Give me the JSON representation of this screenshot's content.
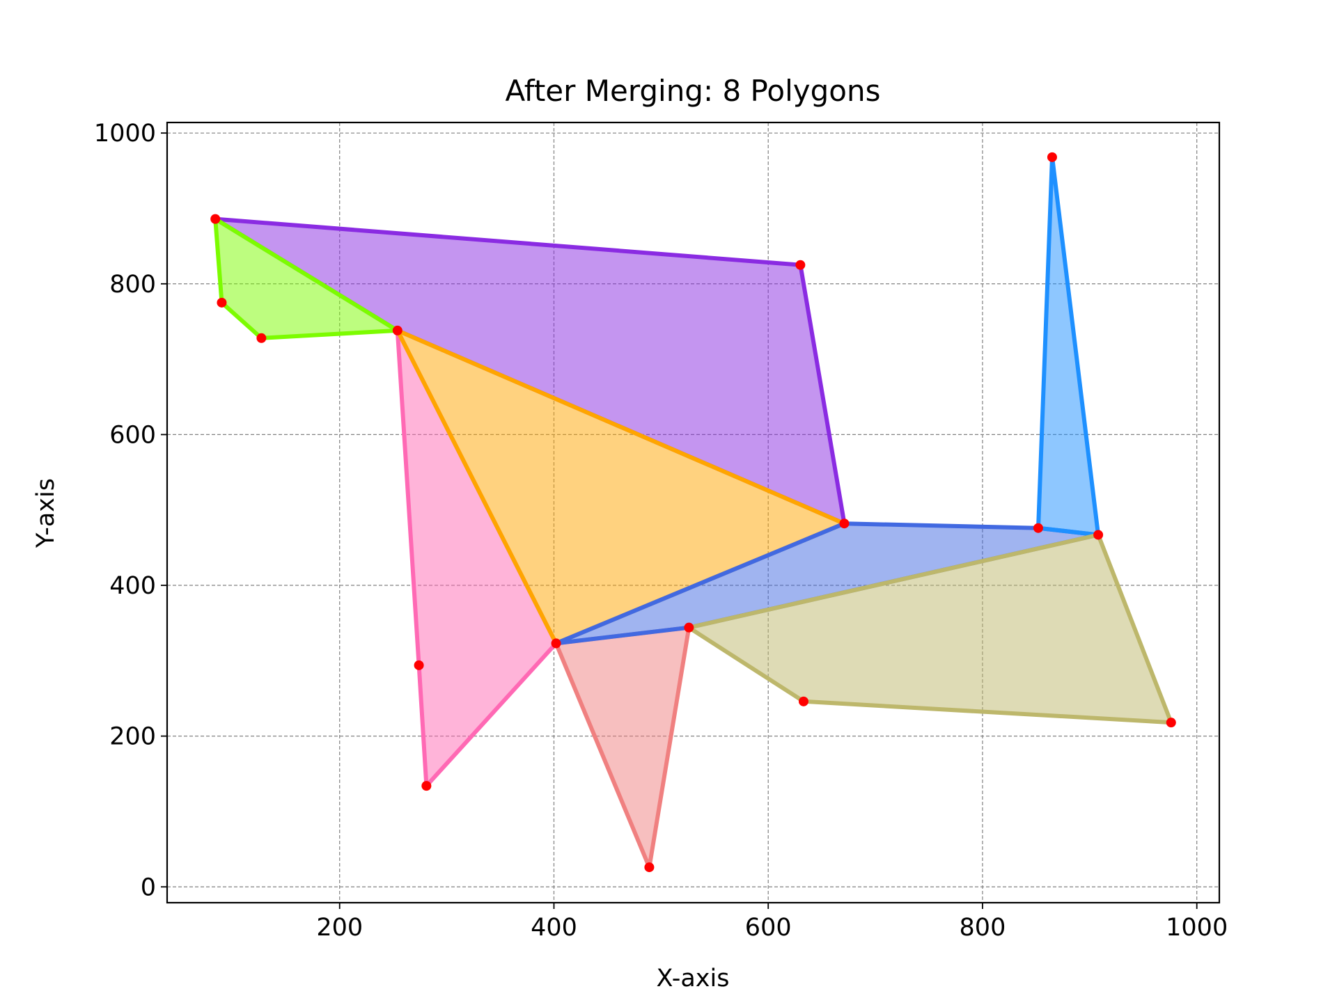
{
  "chart_data": {
    "type": "polygon",
    "title": "After Merging: 8 Polygons",
    "xlabel": "X-axis",
    "ylabel": "Y-axis",
    "xlim": [
      39,
      1021
    ],
    "ylim": [
      -21,
      1014
    ],
    "xticks": [
      200,
      400,
      600,
      800,
      1000
    ],
    "yticks": [
      0,
      200,
      400,
      600,
      800,
      1000
    ],
    "xtick_labels": [
      "200",
      "400",
      "600",
      "800",
      "1000"
    ],
    "ytick_labels": [
      "0",
      "200",
      "400",
      "600",
      "800",
      "1000"
    ],
    "grid": true,
    "vertex_color": "#ff0000",
    "polygons": [
      {
        "color": "#8a2be2",
        "fill_alpha": 0.5,
        "points": [
          [
            84,
            886
          ],
          [
            630,
            825
          ],
          [
            671,
            482
          ],
          [
            254,
            738
          ]
        ]
      },
      {
        "color": "#7cfc00",
        "fill_alpha": 0.5,
        "points": [
          [
            84,
            886
          ],
          [
            254,
            738
          ],
          [
            127,
            728
          ],
          [
            90,
            775
          ]
        ]
      },
      {
        "color": "#ff69b4",
        "fill_alpha": 0.5,
        "points": [
          [
            254,
            738
          ],
          [
            402,
            323
          ],
          [
            281,
            134
          ],
          [
            274,
            294
          ]
        ]
      },
      {
        "color": "#ffa500",
        "fill_alpha": 0.5,
        "points": [
          [
            254,
            738
          ],
          [
            671,
            482
          ],
          [
            402,
            323
          ]
        ]
      },
      {
        "color": "#f08080",
        "fill_alpha": 0.5,
        "points": [
          [
            402,
            323
          ],
          [
            526,
            344
          ],
          [
            489,
            26
          ]
        ]
      },
      {
        "color": "#4169e1",
        "fill_alpha": 0.5,
        "points": [
          [
            402,
            323
          ],
          [
            671,
            482
          ],
          [
            852,
            476
          ],
          [
            908,
            467
          ],
          [
            526,
            344
          ]
        ]
      },
      {
        "color": "#1e90ff",
        "fill_alpha": 0.5,
        "points": [
          [
            852,
            476
          ],
          [
            865,
            968
          ],
          [
            908,
            467
          ]
        ]
      },
      {
        "color": "#bdb76b",
        "fill_alpha": 0.5,
        "points": [
          [
            526,
            344
          ],
          [
            908,
            467
          ],
          [
            976,
            218
          ],
          [
            633,
            246
          ]
        ]
      }
    ],
    "vertices": [
      [
        84,
        886
      ],
      [
        630,
        825
      ],
      [
        90,
        775
      ],
      [
        127,
        728
      ],
      [
        254,
        738
      ],
      [
        671,
        482
      ],
      [
        852,
        476
      ],
      [
        908,
        467
      ],
      [
        865,
        968
      ],
      [
        526,
        344
      ],
      [
        402,
        323
      ],
      [
        274,
        294
      ],
      [
        281,
        134
      ],
      [
        489,
        26
      ],
      [
        633,
        246
      ],
      [
        976,
        218
      ]
    ]
  }
}
